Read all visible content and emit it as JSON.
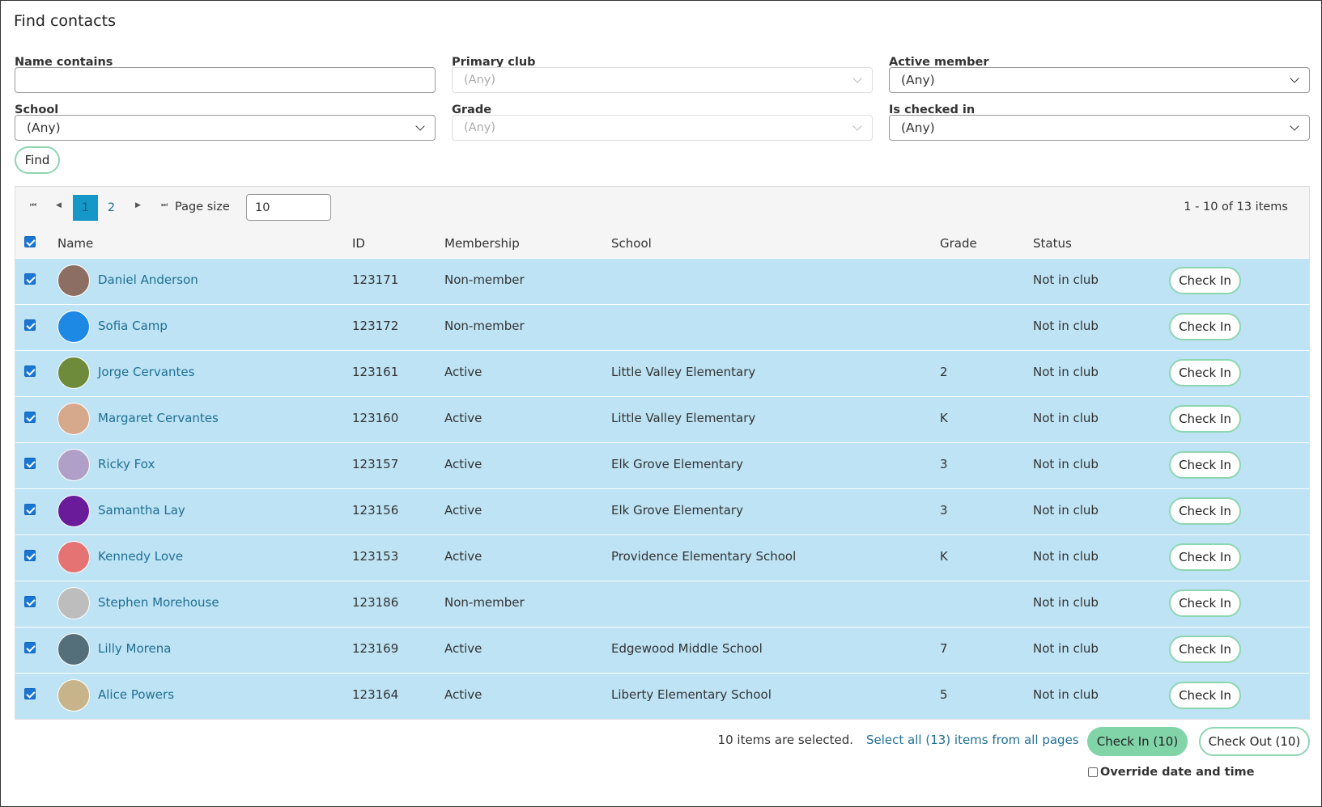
{
  "header": {
    "title": "Find contacts"
  },
  "filters": [
    {
      "label": "Name contains"
    },
    {
      "label": "Primary club",
      "value": "(Any)",
      "disabled": true
    },
    {
      "label": "Active member",
      "value": "(Any)"
    },
    {
      "label": "School",
      "value": "(Any)"
    },
    {
      "label": "Grade",
      "value": "(Any)",
      "disabled": true
    },
    {
      "label": "Is checked in",
      "value": "(Any)"
    }
  ],
  "find_button": "Find",
  "pager": {
    "pages": [
      {
        "label": "1",
        "active": true
      },
      {
        "label": "2"
      }
    ],
    "page_size_label": "Page size",
    "page_size": "10",
    "summary": "1 - 10 of 13 items"
  },
  "table": {
    "columns": [
      "Name",
      "ID",
      "Membership",
      "School",
      "Grade",
      "Status"
    ],
    "rows": [
      [
        "Daniel Anderson",
        "123171",
        "Non-member",
        null,
        null,
        "Not in club",
        "Check In"
      ],
      [
        "Sofia Camp",
        "123172",
        "Non-member",
        null,
        null,
        "Not in club",
        "Check In"
      ],
      [
        "Jorge Cervantes",
        "123161",
        "Active",
        "Little Valley Elementary",
        "2",
        "Not in club",
        "Check In"
      ],
      [
        "Margaret Cervantes",
        "123160",
        "Active",
        "Little Valley Elementary",
        "K",
        "Not in club",
        "Check In"
      ],
      [
        "Ricky Fox",
        "123157",
        "Active",
        "Elk Grove Elementary",
        "3",
        "Not in club",
        "Check In"
      ],
      [
        "Samantha Lay",
        "123156",
        "Active",
        "Elk Grove Elementary",
        "3",
        "Not in club",
        "Check In"
      ],
      [
        "Kennedy Love",
        "123153",
        "Active",
        "Providence Elementary School",
        "K",
        "Not in club",
        "Check In"
      ],
      [
        "Stephen Morehouse",
        "123186",
        "Non-member",
        null,
        null,
        "Not in club",
        "Check In"
      ],
      [
        "Lilly Morena",
        "123169",
        "Active",
        "Edgewood Middle School",
        "7",
        "Not in club",
        "Check In"
      ],
      [
        "Alice Powers",
        "123164",
        "Active",
        "Liberty Elementary School",
        "5",
        "Not in club",
        "Check In"
      ]
    ]
  },
  "footer": {
    "selected": "10 items are selected.",
    "select_all": "Select all (13) items from all pages",
    "check_in": "Check In (10)",
    "check_out": "Check Out (10)",
    "override": "Override date and time"
  }
}
